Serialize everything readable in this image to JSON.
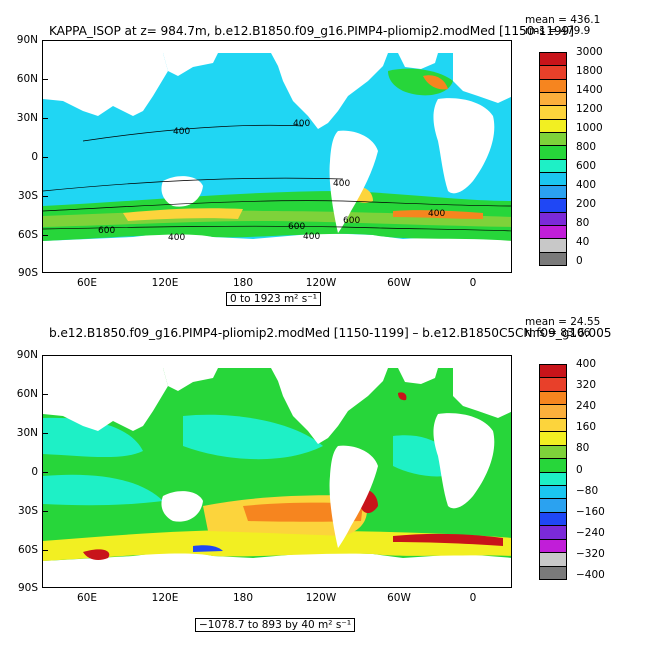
{
  "chart_data": [
    {
      "type": "heatmap",
      "title": "KAPPA_ISOP at z= 984.7m, b.e12.B1850.f09_g16.PIMP4-pliomip2.modMed [1150-1199]",
      "stats": {
        "mean": "mean = 436.1",
        "rms": "rms = 479.9"
      },
      "ylim": [
        -90,
        90
      ],
      "xlim": [
        30,
        390
      ],
      "y_ticks": [
        "90N",
        "60N",
        "30N",
        "0",
        "30S",
        "60S",
        "90S"
      ],
      "x_ticks": [
        "60E",
        "120E",
        "180",
        "120W",
        "60W",
        "0"
      ],
      "range_text": "0 to 1923 m² s⁻¹",
      "contour_labels": [
        "400",
        "400",
        "400",
        "600",
        "600",
        "400",
        "400",
        "600",
        "400"
      ],
      "colorbar": {
        "labels": [
          "3000",
          "1800",
          "1400",
          "1200",
          "1000",
          "800",
          "600",
          "400",
          "200",
          "80",
          "40",
          "0"
        ],
        "colors": [
          "#c8141a",
          "#e8402a",
          "#f6851f",
          "#fbaf3c",
          "#fcd43c",
          "#f2ef22",
          "#7ed23a",
          "#27d63a",
          "#1ef0c6",
          "#1bc6f0",
          "#2ba2f0",
          "#1f47f5",
          "#7b2ad8",
          "#c11ed8",
          "#c8c8c8",
          "#7a7a7a"
        ]
      }
    },
    {
      "type": "heatmap",
      "title": "b.e12.B1850.f09_g16.PIMP4-pliomip2.modMed [1150-1199] – b.e12.B1850C5CN.f09_g16.005",
      "stats": {
        "mean": "mean = 24.55",
        "rms": "rms = 83.06"
      },
      "ylim": [
        -90,
        90
      ],
      "xlim": [
        30,
        390
      ],
      "y_ticks": [
        "90N",
        "60N",
        "30N",
        "0",
        "30S",
        "60S",
        "90S"
      ],
      "x_ticks": [
        "60E",
        "120E",
        "180",
        "120W",
        "60W",
        "0"
      ],
      "range_text": "−1078.7 to 893 by 40 m² s⁻¹",
      "colorbar": {
        "labels": [
          "400",
          "320",
          "240",
          "160",
          "80",
          "0",
          "−80",
          "−160",
          "−240",
          "−320",
          "−400"
        ],
        "colors": [
          "#c8141a",
          "#e8402a",
          "#f6851f",
          "#fbaf3c",
          "#fcd43c",
          "#f2ef22",
          "#7ed23a",
          "#27d63a",
          "#1ef0c6",
          "#1bc6f0",
          "#2ba2f0",
          "#1f47f5",
          "#7b2ad8",
          "#c11ed8",
          "#c8c8c8",
          "#7a7a7a"
        ]
      }
    }
  ]
}
